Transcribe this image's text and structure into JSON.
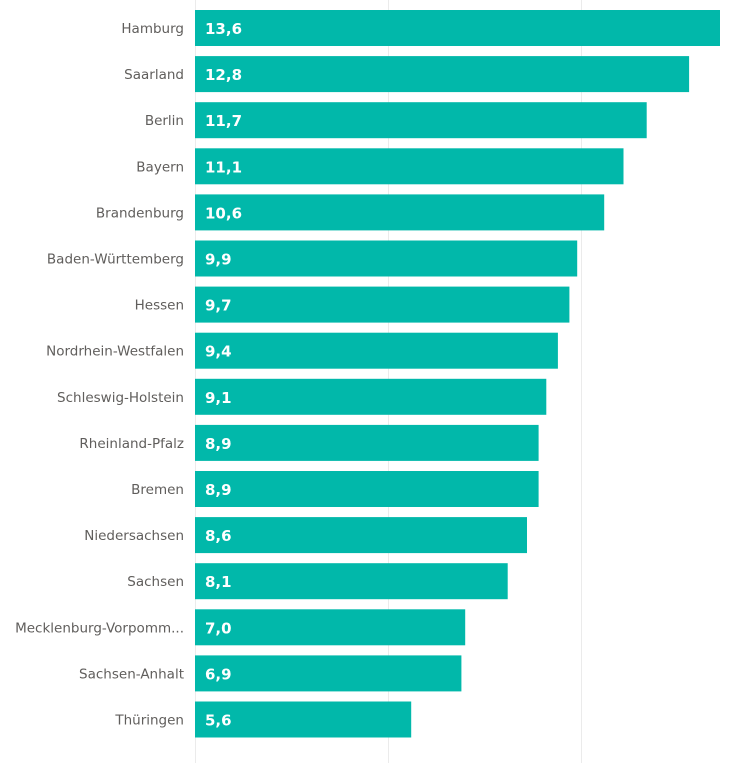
{
  "chart_data": {
    "type": "bar",
    "orientation": "horizontal",
    "categories": [
      "Hamburg",
      "Saarland",
      "Berlin",
      "Bayern",
      "Brandenburg",
      "Baden-Württemberg",
      "Hessen",
      "Nordrhein-Westfalen",
      "Schleswig-Holstein",
      "Rheinland-Pfalz",
      "Bremen",
      "Niedersachsen",
      "Sachsen",
      "Mecklenburg-Vorpomm...",
      "Sachsen-Anhalt",
      "Thüringen"
    ],
    "values": [
      13.6,
      12.8,
      11.7,
      11.1,
      10.6,
      9.9,
      9.7,
      9.4,
      9.1,
      8.9,
      8.9,
      8.6,
      8.1,
      7.0,
      6.9,
      5.6
    ],
    "data_labels": [
      "13,6",
      "12,8",
      "11,7",
      "11,1",
      "10,6",
      "9,9",
      "9,7",
      "9,4",
      "9,1",
      "8,9",
      "8,9",
      "8,6",
      "8,1",
      "7,0",
      "6,9",
      "5,6"
    ],
    "xlim": [
      0,
      13.6
    ],
    "grid": true,
    "gridlines_at": [
      0,
      5,
      10
    ],
    "bar_color": "#01b8aa",
    "label_color": "#605e5c",
    "data_label_color": "#ffffff"
  }
}
